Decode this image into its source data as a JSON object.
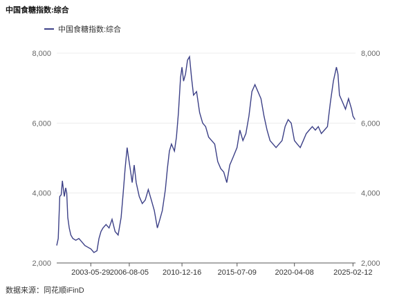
{
  "title": "中国食糖指数:综合",
  "source": "数据来源：同花顺iFinD",
  "chart_data": {
    "type": "line",
    "title": "中国食糖指数:综合",
    "xlabel": "",
    "ylabel": "",
    "ylim": [
      2000,
      8000
    ],
    "yticks": [
      2000,
      4000,
      6000,
      8000
    ],
    "ytick_labels": [
      "2,000",
      "4,000",
      "6,000",
      "8,000"
    ],
    "yaxis_right": true,
    "grid": true,
    "legend": "top-left",
    "x_start": "2000-08-01",
    "x_end": "2025-04-30",
    "xticks": [
      "2003-05-29",
      "2006-08-05",
      "2010-12-16",
      "2015-07-09",
      "2020-04-08",
      "2025-02-12"
    ],
    "color": "#3b3f86",
    "series": [
      {
        "name": "中国食糖指数:综合",
        "points": [
          [
            "2000-08-01",
            2500
          ],
          [
            "2000-09-15",
            2700
          ],
          [
            "2000-11-01",
            3900
          ],
          [
            "2000-12-15",
            3950
          ],
          [
            "2001-01-20",
            4350
          ],
          [
            "2001-02-20",
            4100
          ],
          [
            "2001-03-20",
            3900
          ],
          [
            "2001-05-01",
            4150
          ],
          [
            "2001-06-01",
            4000
          ],
          [
            "2001-07-01",
            3300
          ],
          [
            "2001-08-15",
            3000
          ],
          [
            "2001-10-01",
            2800
          ],
          [
            "2001-12-01",
            2700
          ],
          [
            "2002-03-01",
            2650
          ],
          [
            "2002-06-01",
            2700
          ],
          [
            "2002-09-01",
            2600
          ],
          [
            "2002-12-01",
            2500
          ],
          [
            "2003-03-01",
            2450
          ],
          [
            "2003-06-01",
            2400
          ],
          [
            "2003-09-01",
            2300
          ],
          [
            "2003-12-01",
            2350
          ],
          [
            "2004-02-01",
            2700
          ],
          [
            "2004-04-01",
            2900
          ],
          [
            "2004-06-01",
            3000
          ],
          [
            "2004-09-01",
            3100
          ],
          [
            "2004-12-01",
            3000
          ],
          [
            "2005-03-01",
            3250
          ],
          [
            "2005-06-01",
            2900
          ],
          [
            "2005-09-01",
            2800
          ],
          [
            "2005-12-01",
            3300
          ],
          [
            "2006-02-01",
            4000
          ],
          [
            "2006-04-01",
            4700
          ],
          [
            "2006-06-01",
            5300
          ],
          [
            "2006-07-15",
            5000
          ],
          [
            "2006-09-01",
            4700
          ],
          [
            "2006-11-01",
            4300
          ],
          [
            "2007-01-01",
            4800
          ],
          [
            "2007-03-01",
            4300
          ],
          [
            "2007-06-01",
            3900
          ],
          [
            "2007-09-01",
            3700
          ],
          [
            "2007-12-01",
            3800
          ],
          [
            "2008-03-01",
            4100
          ],
          [
            "2008-06-01",
            3800
          ],
          [
            "2008-09-01",
            3500
          ],
          [
            "2008-12-01",
            3000
          ],
          [
            "2009-02-01",
            3200
          ],
          [
            "2009-05-01",
            3500
          ],
          [
            "2009-08-01",
            4100
          ],
          [
            "2009-10-01",
            4700
          ],
          [
            "2009-12-01",
            5200
          ],
          [
            "2010-02-01",
            5400
          ],
          [
            "2010-05-01",
            5200
          ],
          [
            "2010-07-01",
            5600
          ],
          [
            "2010-09-01",
            6300
          ],
          [
            "2010-11-01",
            7300
          ],
          [
            "2010-12-16",
            7600
          ],
          [
            "2011-02-01",
            7200
          ],
          [
            "2011-04-01",
            7400
          ],
          [
            "2011-06-01",
            7800
          ],
          [
            "2011-08-01",
            7900
          ],
          [
            "2011-10-01",
            7300
          ],
          [
            "2011-12-01",
            6800
          ],
          [
            "2012-03-01",
            6900
          ],
          [
            "2012-06-01",
            6300
          ],
          [
            "2012-09-01",
            6000
          ],
          [
            "2012-12-01",
            5900
          ],
          [
            "2013-03-01",
            5600
          ],
          [
            "2013-06-01",
            5500
          ],
          [
            "2013-09-01",
            5400
          ],
          [
            "2013-12-01",
            4900
          ],
          [
            "2014-03-01",
            4700
          ],
          [
            "2014-06-01",
            4600
          ],
          [
            "2014-09-01",
            4300
          ],
          [
            "2014-12-01",
            4800
          ],
          [
            "2015-03-01",
            5000
          ],
          [
            "2015-07-09",
            5300
          ],
          [
            "2015-10-01",
            5800
          ],
          [
            "2016-01-01",
            5500
          ],
          [
            "2016-04-01",
            5700
          ],
          [
            "2016-07-01",
            6200
          ],
          [
            "2016-10-01",
            6900
          ],
          [
            "2017-01-01",
            7100
          ],
          [
            "2017-04-01",
            6900
          ],
          [
            "2017-07-01",
            6700
          ],
          [
            "2017-10-01",
            6200
          ],
          [
            "2018-01-01",
            5800
          ],
          [
            "2018-04-01",
            5500
          ],
          [
            "2018-07-01",
            5400
          ],
          [
            "2018-10-01",
            5300
          ],
          [
            "2019-01-01",
            5400
          ],
          [
            "2019-04-01",
            5500
          ],
          [
            "2019-07-01",
            5900
          ],
          [
            "2019-10-01",
            6100
          ],
          [
            "2020-01-01",
            6000
          ],
          [
            "2020-04-08",
            5500
          ],
          [
            "2020-07-01",
            5400
          ],
          [
            "2020-10-01",
            5300
          ],
          [
            "2021-01-01",
            5500
          ],
          [
            "2021-04-01",
            5700
          ],
          [
            "2021-07-01",
            5800
          ],
          [
            "2021-10-01",
            5900
          ],
          [
            "2022-01-01",
            5800
          ],
          [
            "2022-04-01",
            5900
          ],
          [
            "2022-07-01",
            5700
          ],
          [
            "2022-10-01",
            5800
          ],
          [
            "2023-01-01",
            5900
          ],
          [
            "2023-04-01",
            6600
          ],
          [
            "2023-07-01",
            7200
          ],
          [
            "2023-10-01",
            7600
          ],
          [
            "2023-11-15",
            7400
          ],
          [
            "2024-01-01",
            6800
          ],
          [
            "2024-04-01",
            6600
          ],
          [
            "2024-07-01",
            6400
          ],
          [
            "2024-10-01",
            6700
          ],
          [
            "2025-01-01",
            6400
          ],
          [
            "2025-02-12",
            6200
          ],
          [
            "2025-04-15",
            6100
          ]
        ]
      }
    ]
  }
}
